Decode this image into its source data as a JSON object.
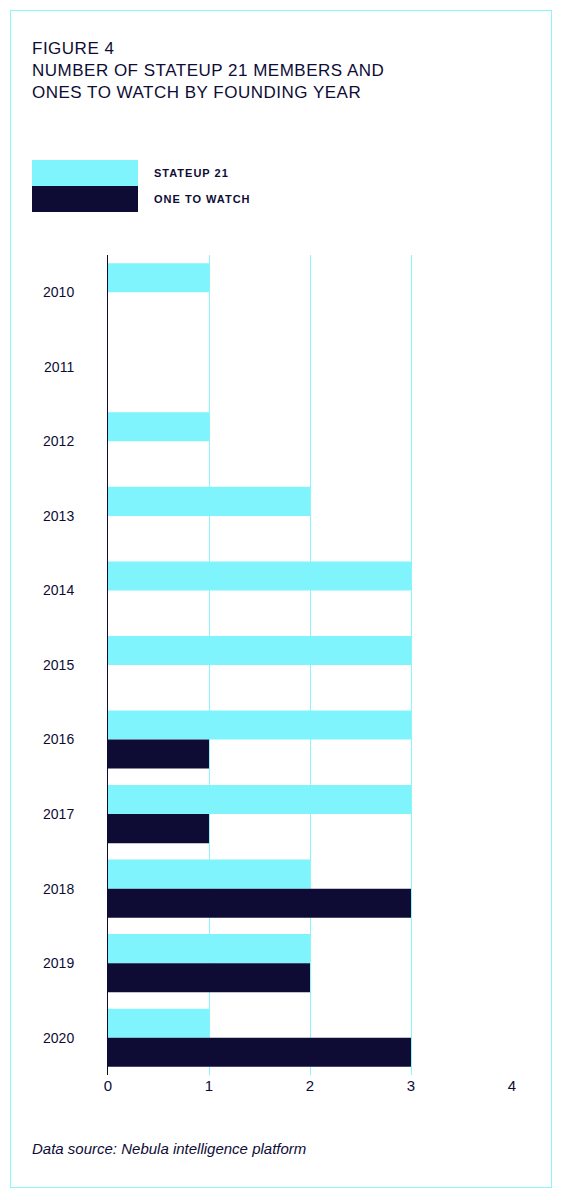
{
  "chart_data": {
    "type": "bar",
    "orientation": "horizontal",
    "title": "FIGURE 4",
    "subtitle": "NUMBER OF STATEUP 21 MEMBERS AND ONES TO WATCH BY FOUNDING YEAR",
    "categories": [
      "2010",
      "2011",
      "2012",
      "2013",
      "2014",
      "2015",
      "2016",
      "2017",
      "2018",
      "2019",
      "2020"
    ],
    "series": [
      {
        "name": "STATEUP 21",
        "color": "#7ff4fd",
        "values": [
          1,
          0,
          1,
          2,
          3,
          3,
          3,
          3,
          2,
          2,
          1
        ]
      },
      {
        "name": "ONE TO WATCH",
        "color": "#0e0c35",
        "values": [
          0,
          0,
          0,
          0,
          0,
          0,
          1,
          1,
          3,
          2,
          3
        ]
      }
    ],
    "xlim": [
      0,
      4
    ],
    "xticks": [
      0,
      1,
      2,
      3,
      4
    ],
    "grid": true,
    "annotations": [
      "Data source: Nebula intelligence platform"
    ]
  }
}
